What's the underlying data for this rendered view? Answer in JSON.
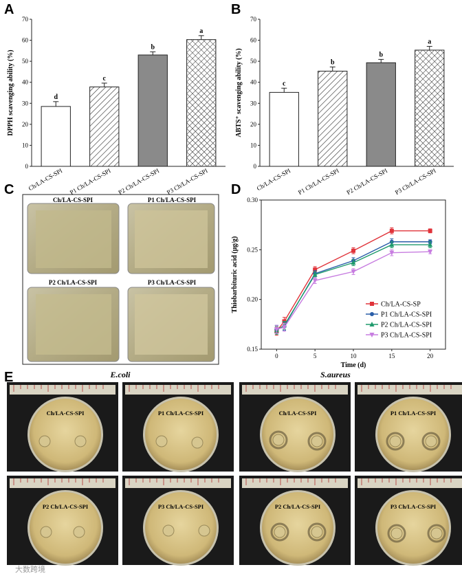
{
  "colors": {
    "line_red": "#e0333a",
    "line_blue": "#2a5ea8",
    "line_green": "#1f9a6c",
    "line_purple": "#c77de0",
    "film_bg": "#b7b08e",
    "plate_bg": "#d8c58a",
    "ruler": "#d9d4c3"
  },
  "panels": {
    "A": "A",
    "B": "B",
    "C": "C",
    "D": "D",
    "E": "E"
  },
  "chart_data": [
    {
      "id": "A",
      "type": "bar",
      "ylabel": "DPPH scavenging ability (%)",
      "ylim": [
        0,
        70
      ],
      "yticks": [
        0,
        10,
        20,
        30,
        40,
        50,
        60,
        70
      ],
      "categories": [
        "Ch/LA-CS-SPI",
        "P1 Ch/LA-CS-SPI",
        "P2 Ch/LA-CS-SPI",
        "P3 Ch/LA-CS-SPI"
      ],
      "values": [
        28.5,
        37.8,
        53.0,
        60.3
      ],
      "errors": [
        2.3,
        1.8,
        1.5,
        1.9
      ],
      "significance": [
        "d",
        "c",
        "b",
        "a"
      ],
      "patterns": [
        "white",
        "hatch",
        "gray",
        "crosshatch"
      ]
    },
    {
      "id": "B",
      "type": "bar",
      "ylabel": "ABTS⁺ scavenging ability (%)",
      "ylim": [
        0,
        70
      ],
      "yticks": [
        0,
        10,
        20,
        30,
        40,
        50,
        60,
        70
      ],
      "categories": [
        "Ch/LA-CS-SPI",
        "P1 Ch/LA-CS-SPI",
        "P2 Ch/LA-CS-SPI",
        "P3 Ch/LA-CS-SPI"
      ],
      "values": [
        35.2,
        45.3,
        49.3,
        55.3
      ],
      "errors": [
        2.0,
        2.0,
        1.6,
        1.8
      ],
      "significance": [
        "c",
        "b",
        "b",
        "a"
      ],
      "patterns": [
        "white",
        "hatch",
        "gray",
        "crosshatch"
      ]
    },
    {
      "id": "D",
      "type": "line",
      "xlabel": "Time (d)",
      "ylabel": "Thiobarbituric acid (μg/g)",
      "xlim": [
        -2,
        22
      ],
      "ylim": [
        0.15,
        0.3
      ],
      "xticks": [
        0,
        5,
        10,
        15,
        20
      ],
      "yticks": [
        "0.15",
        "0.20",
        "0.25",
        "0.30"
      ],
      "x": [
        0,
        1,
        5,
        10,
        15,
        20
      ],
      "series": [
        {
          "name": "Ch/LA-CS-SP",
          "color": "#e0333a",
          "marker": "square",
          "values": [
            0.168,
            0.178,
            0.23,
            0.249,
            0.269,
            0.269
          ],
          "errors": [
            0.004,
            0.004,
            0.003,
            0.003,
            0.003,
            0.002
          ]
        },
        {
          "name": "P1 Ch/LA-CS-SPI",
          "color": "#2a5ea8",
          "marker": "circle",
          "values": [
            0.17,
            0.173,
            0.226,
            0.239,
            0.258,
            0.258
          ],
          "errors": [
            0.004,
            0.004,
            0.003,
            0.003,
            0.003,
            0.002
          ]
        },
        {
          "name": "P2 Ch/LA-CS-SPI",
          "color": "#1f9a6c",
          "marker": "triangle",
          "values": [
            0.169,
            0.174,
            0.225,
            0.237,
            0.255,
            0.255
          ],
          "errors": [
            0.004,
            0.004,
            0.003,
            0.003,
            0.003,
            0.003
          ]
        },
        {
          "name": "P3 Ch/LA-CS-SPI",
          "color": "#c77de0",
          "marker": "triangle-down",
          "values": [
            0.17,
            0.172,
            0.219,
            0.228,
            0.247,
            0.248
          ],
          "errors": [
            0.004,
            0.004,
            0.003,
            0.003,
            0.003,
            0.002
          ]
        }
      ]
    }
  ],
  "panel_c": {
    "labels": [
      "Ch/LA-CS-SPI",
      "P1 Ch/LA-CS-SPI",
      "P2 Ch/LA-CS-SPI",
      "P3 Ch/LA-CS-SPI"
    ]
  },
  "panel_e": {
    "species": [
      "E.coli",
      "S.aureus"
    ],
    "plate_labels": [
      "Ch/LA-CS-SPI",
      "P1 Ch/LA-CS-SPI",
      "P2 Ch/LA-CS-SPI",
      "P3 Ch/LA-CS-SPI"
    ]
  },
  "watermark": "大数跨境"
}
